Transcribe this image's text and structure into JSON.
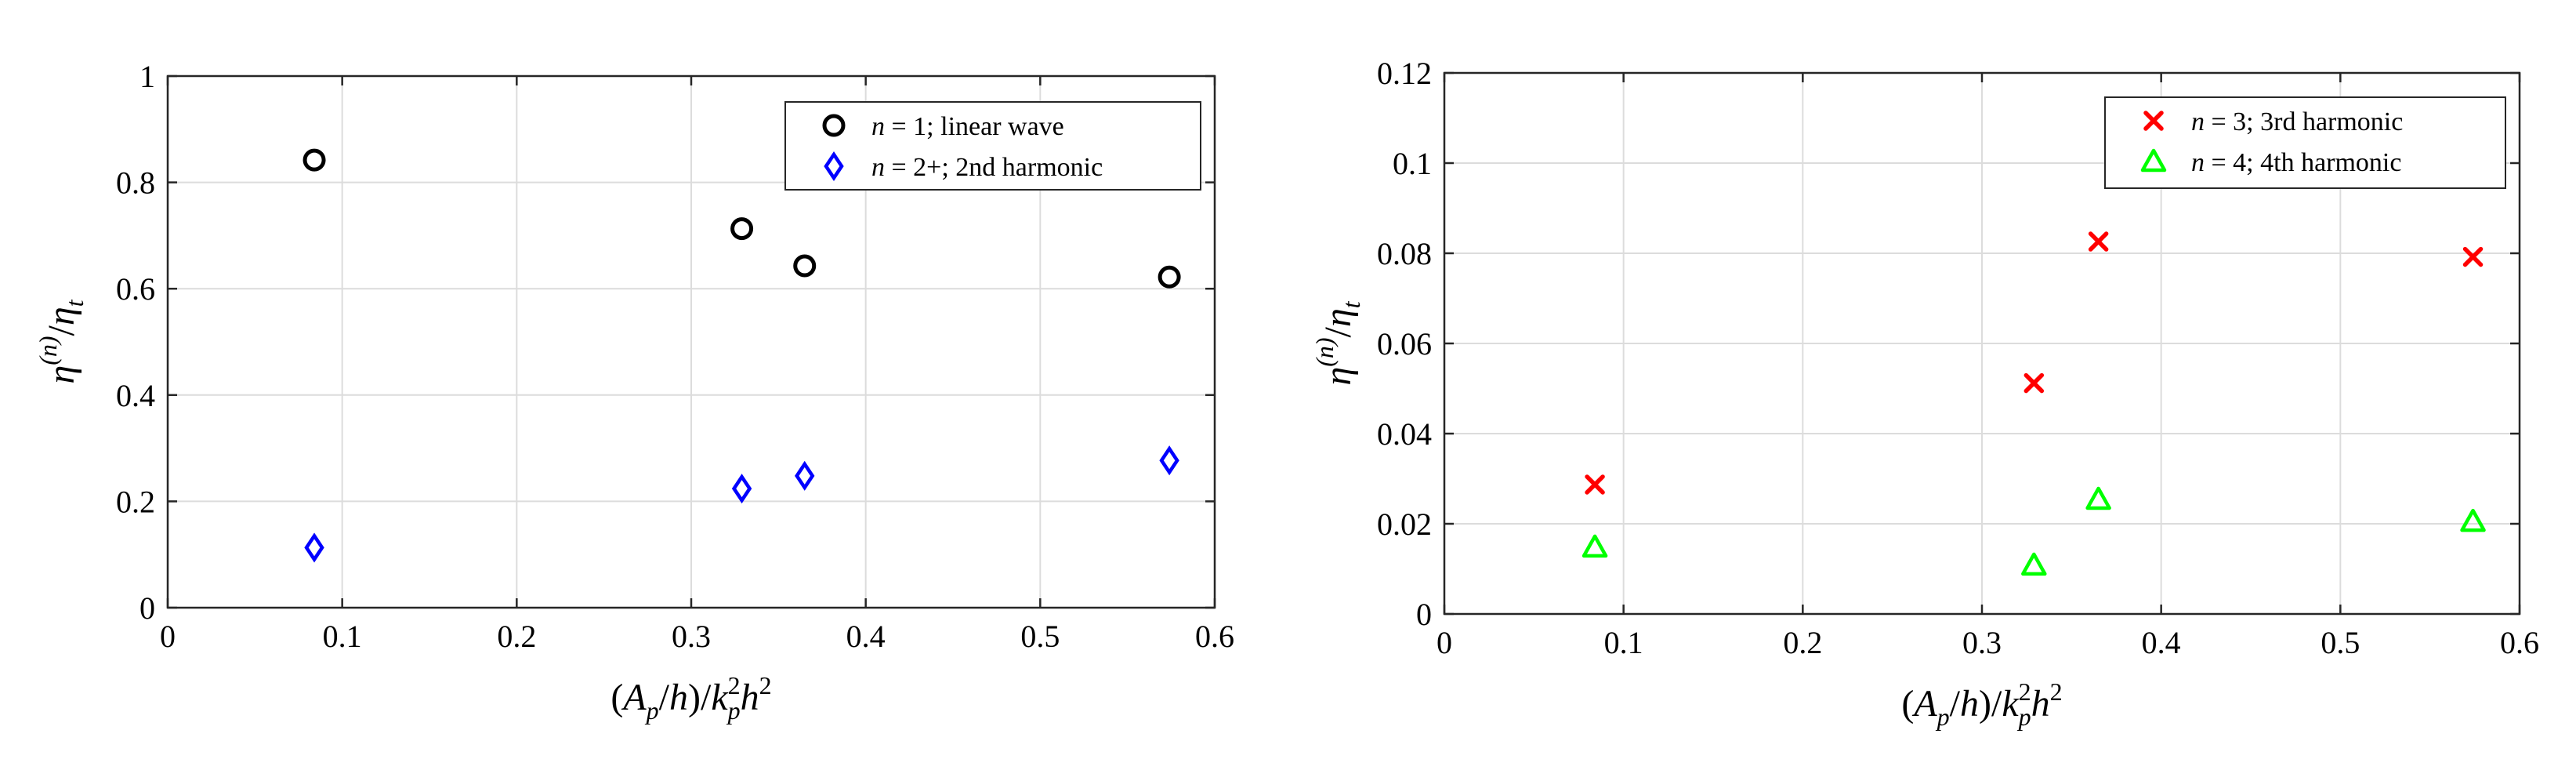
{
  "chart_data": [
    {
      "type": "scatter",
      "xlabel_parts": [
        "(",
        "A",
        "p",
        "/",
        "h",
        ")/",
        "k",
        "p",
        "2",
        "h",
        "2"
      ],
      "ylabel_parts": [
        "η",
        "(n)",
        "/",
        "η",
        "t"
      ],
      "xlim": [
        0,
        0.6
      ],
      "ylim": [
        0,
        1
      ],
      "xticks": [
        "0",
        "0.1",
        "0.2",
        "0.3",
        "0.4",
        "0.5",
        "0.6"
      ],
      "yticks": [
        "0",
        "0.2",
        "0.4",
        "0.6",
        "0.8",
        "1"
      ],
      "grid": true,
      "legend_position": "top-right",
      "series": [
        {
          "legend_var": "n",
          "legend_text": " = 1; linear wave",
          "marker": "circle",
          "color": "#000000",
          "x": [
            0.084,
            0.329,
            0.365,
            0.574
          ],
          "y": [
            0.842,
            0.713,
            0.643,
            0.622
          ]
        },
        {
          "legend_var": "n",
          "legend_text": " = 2+; 2nd harmonic",
          "marker": "diamond",
          "color": "#0000ff",
          "x": [
            0.084,
            0.329,
            0.365,
            0.574
          ],
          "y": [
            0.113,
            0.224,
            0.248,
            0.277
          ]
        }
      ]
    },
    {
      "type": "scatter",
      "xlabel_parts": [
        "(",
        "A",
        "p",
        "/",
        "h",
        ")/",
        "k",
        "p",
        "2",
        "h",
        "2"
      ],
      "ylabel_parts": [
        "η",
        "(n)",
        "/",
        "η",
        "t"
      ],
      "xlim": [
        0,
        0.6
      ],
      "ylim": [
        0,
        0.12
      ],
      "xticks": [
        "0",
        "0.1",
        "0.2",
        "0.3",
        "0.4",
        "0.5",
        "0.6"
      ],
      "yticks": [
        "0",
        "0.02",
        "0.04",
        "0.06",
        "0.08",
        "0.1",
        "0.12"
      ],
      "grid": true,
      "legend_position": "top-right",
      "series": [
        {
          "legend_var": "n",
          "legend_text": " = 3; 3rd harmonic",
          "marker": "x",
          "color": "#ff0000",
          "x": [
            0.084,
            0.329,
            0.365,
            0.574
          ],
          "y": [
            0.0287,
            0.0512,
            0.0826,
            0.0792
          ]
        },
        {
          "legend_var": "n",
          "legend_text": " = 4; 4th harmonic",
          "marker": "triangle",
          "color": "#00ff00",
          "x": [
            0.084,
            0.329,
            0.365,
            0.574
          ],
          "y": [
            0.0148,
            0.0108,
            0.0254,
            0.0205
          ]
        }
      ]
    }
  ]
}
